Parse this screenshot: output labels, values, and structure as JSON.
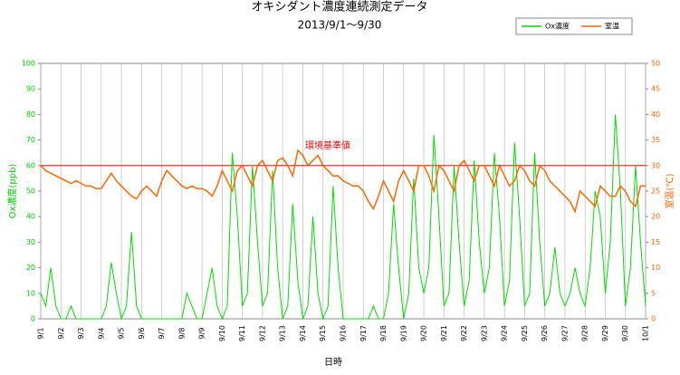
{
  "chart_data": {
    "type": "line",
    "title": "オキシダント濃度連続測定データ",
    "subtitle": "2013/9/1～9/30",
    "x_label": "日時",
    "y_label": "Ox濃度(ppb)",
    "y2_label": "室温(℃)",
    "categories": [
      "9/1",
      null,
      null,
      null,
      "9/2",
      null,
      null,
      null,
      "9/3",
      null,
      null,
      null,
      "9/4",
      null,
      null,
      null,
      "9/5",
      null,
      null,
      null,
      "9/6",
      null,
      null,
      null,
      "9/7",
      null,
      null,
      null,
      "9/8",
      null,
      null,
      null,
      "9/9",
      null,
      null,
      null,
      "9/10",
      null,
      null,
      null,
      "9/11",
      null,
      null,
      null,
      "9/12",
      null,
      null,
      null,
      "9/13",
      null,
      null,
      null,
      "9/14",
      null,
      null,
      null,
      "9/15",
      null,
      null,
      null,
      "9/16",
      null,
      null,
      null,
      "9/17",
      null,
      null,
      null,
      "9/18",
      null,
      null,
      null,
      "9/19",
      null,
      null,
      null,
      "9/20",
      null,
      null,
      null,
      "9/21",
      null,
      null,
      null,
      "9/22",
      null,
      null,
      null,
      "9/23",
      null,
      null,
      null,
      "9/24",
      null,
      null,
      null,
      "9/25",
      null,
      null,
      null,
      "9/26",
      null,
      null,
      null,
      "9/27",
      null,
      null,
      null,
      "9/28",
      null,
      null,
      null,
      "9/29",
      null,
      null,
      null,
      "9/30",
      null,
      null,
      null,
      "10/1"
    ],
    "series": [
      {
        "name": "Ox濃度",
        "color": "#00dd00",
        "values": [
          10,
          5,
          20,
          5,
          0,
          0,
          5,
          0,
          0,
          0,
          0,
          0,
          0,
          5,
          22,
          10,
          0,
          5,
          34,
          5,
          0,
          0,
          0,
          0,
          0,
          0,
          0,
          0,
          0,
          10,
          5,
          0,
          0,
          10,
          20,
          5,
          0,
          5,
          65,
          40,
          5,
          10,
          60,
          30,
          5,
          10,
          58,
          20,
          0,
          5,
          45,
          15,
          0,
          5,
          40,
          10,
          0,
          5,
          52,
          20,
          0,
          0,
          0,
          0,
          0,
          0,
          5,
          0,
          0,
          10,
          45,
          20,
          0,
          10,
          55,
          20,
          10,
          20,
          72,
          40,
          5,
          10,
          60,
          30,
          5,
          15,
          62,
          30,
          10,
          20,
          65,
          40,
          5,
          15,
          69,
          40,
          5,
          10,
          65,
          30,
          5,
          10,
          28,
          10,
          5,
          10,
          20,
          10,
          5,
          20,
          50,
          40,
          10,
          30,
          80,
          50,
          5,
          20,
          60,
          30,
          5
        ]
      },
      {
        "name": "室温",
        "color": "#ff6600",
        "axis": "y2",
        "values": [
          30,
          29,
          28.5,
          28,
          27.5,
          27,
          26.5,
          27,
          26.5,
          26,
          26,
          25.5,
          25.5,
          27,
          28.5,
          27,
          26,
          25,
          24,
          23.5,
          25,
          26,
          25,
          24,
          27,
          29,
          28,
          27,
          26,
          25.5,
          26,
          25.5,
          25.5,
          25,
          24,
          26,
          29,
          27,
          25,
          29,
          30,
          28,
          26,
          30,
          31,
          29,
          27,
          31,
          31.5,
          30,
          28,
          33,
          32,
          30,
          31,
          32,
          30,
          29,
          28,
          28,
          27,
          26.5,
          26,
          26,
          25,
          23,
          21.5,
          24,
          27,
          25,
          23,
          27,
          29,
          27,
          25,
          30,
          30,
          28,
          25,
          30,
          29,
          27,
          25,
          30,
          31,
          29,
          27,
          30,
          30,
          28,
          26,
          30,
          28,
          26,
          27,
          30,
          29,
          27,
          26,
          30,
          29,
          27,
          26,
          25,
          24,
          23,
          21,
          25,
          24,
          23,
          22,
          26,
          25,
          24,
          24,
          26,
          25,
          23,
          22,
          26,
          26
        ]
      }
    ],
    "reference_line": {
      "value": 60,
      "label": "環境基準値",
      "color": "#ff0000"
    },
    "ylim": [
      0,
      100
    ],
    "yticks": [
      0,
      10,
      20,
      30,
      40,
      50,
      60,
      70,
      80,
      90,
      100
    ],
    "y2lim": [
      0,
      50
    ],
    "y2ticks": [
      0,
      5,
      10,
      15,
      20,
      25,
      30,
      35,
      40,
      45,
      50
    ],
    "grid": true,
    "legend": "upper right"
  }
}
